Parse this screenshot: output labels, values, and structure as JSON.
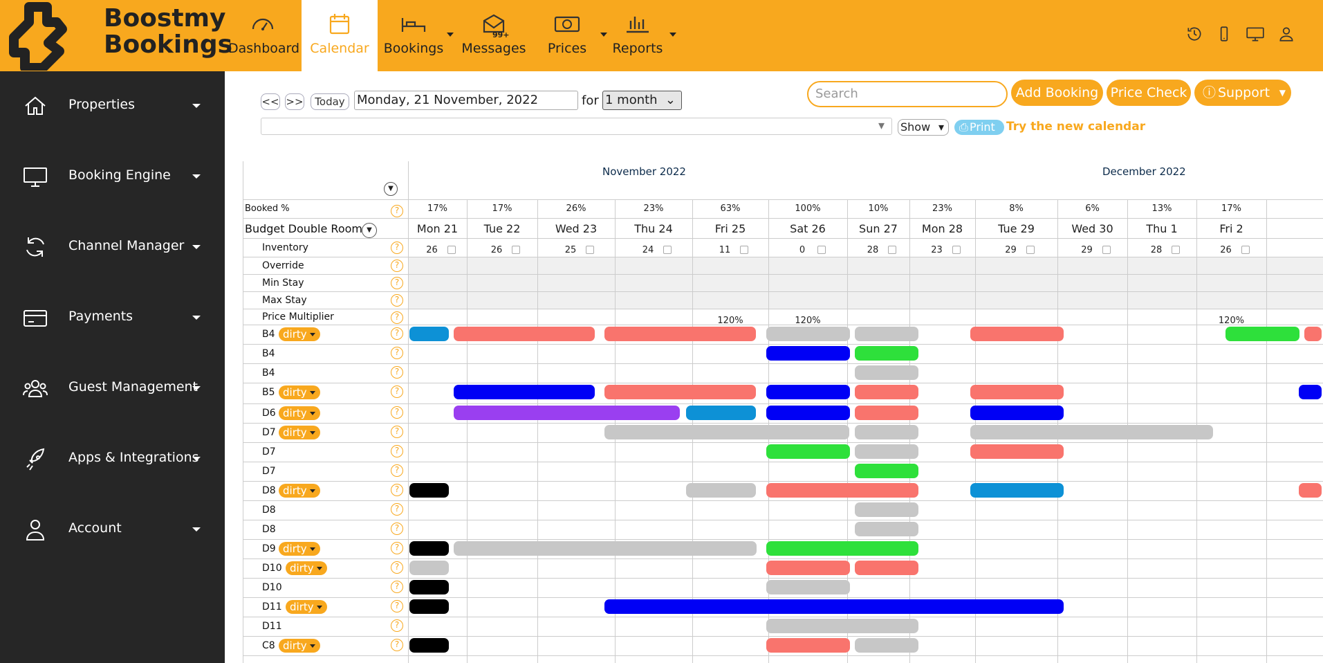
{
  "brand": {
    "line1": "Boostmy",
    "line2": "Bookings"
  },
  "nav": [
    {
      "label": "Dashboard",
      "icon": "gauge-icon",
      "x": 330,
      "w": 100
    },
    {
      "label": "Calendar",
      "icon": "calendar-icon",
      "x": 436,
      "w": 110,
      "active": true
    },
    {
      "label": "Bookings",
      "icon": "bed-icon",
      "x": 548,
      "w": 100,
      "caret": true
    },
    {
      "label": "Messages",
      "icon": "envelope-icon",
      "x": 664,
      "w": 100,
      "badge": "99+"
    },
    {
      "label": "Prices",
      "icon": "money-icon",
      "x": 770,
      "w": 100,
      "caret": true
    },
    {
      "label": "Reports",
      "icon": "bar-chart-icon",
      "x": 872,
      "w": 100,
      "caret": true
    }
  ],
  "sidebar": [
    {
      "label": "Properties",
      "icon": "home-icon"
    },
    {
      "label": "Booking Engine",
      "icon": "monitor-icon"
    },
    {
      "label": "Channel Manager",
      "icon": "sync-icon"
    },
    {
      "label": "Payments",
      "icon": "credit-card-icon"
    },
    {
      "label": "Guest Management",
      "icon": "users-icon"
    },
    {
      "label": "Apps & Integrations",
      "icon": "rocket-icon"
    },
    {
      "label": "Account",
      "icon": "user-icon"
    }
  ],
  "controls": {
    "prev": "<<",
    "next": ">>",
    "today": "Today",
    "date": "Monday, 21 November, 2022",
    "for": "for",
    "range": "1 month",
    "search_placeholder": "Search",
    "add_booking": "Add Booking",
    "price_check": "Price Check",
    "support": "Support",
    "show": "Show",
    "print": "Print",
    "new_calendar": "Try the new calendar"
  },
  "months": [
    {
      "label": "November 2022"
    },
    {
      "label": "December 2022"
    }
  ],
  "room": "Budget Double Room",
  "labels": {
    "booked": "Booked %",
    "inventory": "Inventory",
    "override": "Override",
    "min_stay": "Min Stay",
    "max_stay": "Max Stay",
    "multiplier": "Price Multiplier"
  },
  "days": [
    {
      "label": "Mon 21",
      "booked": "17%",
      "inv": "26",
      "mult": ""
    },
    {
      "label": "Tue 22",
      "booked": "17%",
      "inv": "26",
      "mult": ""
    },
    {
      "label": "Wed 23",
      "booked": "26%",
      "inv": "25",
      "mult": ""
    },
    {
      "label": "Thu 24",
      "booked": "23%",
      "inv": "24",
      "mult": ""
    },
    {
      "label": "Fri 25",
      "booked": "63%",
      "inv": "11",
      "mult": "120%"
    },
    {
      "label": "Sat 26",
      "booked": "100%",
      "inv": "0",
      "mult": "120%"
    },
    {
      "label": "Sun 27",
      "booked": "10%",
      "inv": "28",
      "mult": ""
    },
    {
      "label": "Mon 28",
      "booked": "23%",
      "inv": "23",
      "mult": ""
    },
    {
      "label": "Tue 29",
      "booked": "8%",
      "inv": "29",
      "mult": ""
    },
    {
      "label": "Wed 30",
      "booked": "6%",
      "inv": "29",
      "mult": ""
    },
    {
      "label": "Thu 1",
      "booked": "13%",
      "inv": "28",
      "mult": ""
    },
    {
      "label": "Fri 2",
      "booked": "17%",
      "inv": "26",
      "mult": "120%"
    }
  ],
  "units": [
    {
      "name": "B4",
      "dirty": "dirty",
      "bars": [
        [
          0,
          0.7,
          "#0d91d6"
        ],
        [
          0.75,
          2.75,
          "#f9746d"
        ],
        [
          2.85,
          4.85,
          "#f9746d"
        ],
        [
          4.95,
          6.05,
          "#c7c7c7"
        ],
        [
          6.1,
          7.15,
          "#c7c7c7"
        ],
        [
          7.9,
          9.1,
          "#f9746d"
        ],
        [
          11.4,
          12.6,
          "#2ee03b"
        ],
        [
          12.65,
          13,
          "#f9746d"
        ]
      ]
    },
    {
      "name": "B4",
      "bars": [
        [
          4.95,
          6.05,
          "#0000f5"
        ],
        [
          6.1,
          7.15,
          "#2ee03b"
        ]
      ]
    },
    {
      "name": "B4",
      "bars": [
        [
          6.1,
          7.15,
          "#c7c7c7"
        ]
      ]
    },
    {
      "name": "B5",
      "dirty": "dirty",
      "bars": [
        [
          0.75,
          2.75,
          "#0000f5"
        ],
        [
          2.85,
          4.85,
          "#f9746d"
        ],
        [
          4.95,
          6.05,
          "#0000f5"
        ],
        [
          6.1,
          7.15,
          "#f9746d"
        ],
        [
          7.9,
          9.1,
          "#f9746d"
        ],
        [
          12.55,
          13,
          "#0000f5"
        ]
      ]
    },
    {
      "name": "D6",
      "dirty": "dirty",
      "bars": [
        [
          0.75,
          3.85,
          "#9a3ff0"
        ],
        [
          3.9,
          4.85,
          "#0d91d6"
        ],
        [
          4.95,
          6.05,
          "#0000f5"
        ],
        [
          6.1,
          7.15,
          "#f9746d"
        ],
        [
          7.9,
          9.1,
          "#0000f5"
        ]
      ]
    },
    {
      "name": "D7",
      "dirty": "dirty",
      "bars": [
        [
          2.85,
          6.05,
          "#c7c7c7"
        ],
        [
          6.1,
          7.15,
          "#c7c7c7"
        ],
        [
          7.9,
          11.25,
          "#c7c7c7"
        ]
      ]
    },
    {
      "name": "D7",
      "bars": [
        [
          4.95,
          6.05,
          "#2ee03b"
        ],
        [
          6.1,
          7.15,
          "#c7c7c7"
        ],
        [
          7.9,
          9.1,
          "#f9746d"
        ]
      ]
    },
    {
      "name": "D7",
      "bars": [
        [
          6.1,
          7.15,
          "#2ee03b"
        ]
      ]
    },
    {
      "name": "D8",
      "dirty": "dirty",
      "bars": [
        [
          0,
          0.7,
          "#000000"
        ],
        [
          3.9,
          4.85,
          "#c7c7c7"
        ],
        [
          4.95,
          7.15,
          "#f9746d"
        ],
        [
          7.9,
          9.1,
          "#0d91d6"
        ],
        [
          12.55,
          13,
          "#f9746d"
        ]
      ]
    },
    {
      "name": "D8",
      "bars": [
        [
          6.1,
          7.15,
          "#c7c7c7"
        ]
      ]
    },
    {
      "name": "D8",
      "bars": [
        [
          6.1,
          7.15,
          "#c7c7c7"
        ]
      ]
    },
    {
      "name": "D9",
      "dirty": "dirty",
      "bars": [
        [
          0,
          0.7,
          "#000000"
        ],
        [
          0.75,
          4.85,
          "#c7c7c7"
        ],
        [
          4.95,
          7.15,
          "#2ee03b"
        ]
      ]
    },
    {
      "name": "D10",
      "dirty": "dirty",
      "bars": [
        [
          0,
          0.7,
          "#c7c7c7"
        ],
        [
          4.95,
          6.05,
          "#f9746d"
        ],
        [
          6.1,
          7.15,
          "#f9746d"
        ]
      ]
    },
    {
      "name": "D10",
      "bars": [
        [
          0,
          0.7,
          "#000000"
        ],
        [
          4.95,
          6.05,
          "#c7c7c7"
        ]
      ]
    },
    {
      "name": "D11",
      "dirty": "dirty",
      "bars": [
        [
          0,
          0.7,
          "#000000"
        ],
        [
          2.85,
          9.1,
          "#0000f5"
        ]
      ]
    },
    {
      "name": "D11",
      "bars": [
        [
          4.95,
          7.15,
          "#c7c7c7"
        ]
      ]
    },
    {
      "name": "C8",
      "dirty": "dirty",
      "bars": [
        [
          0,
          0.7,
          "#000000"
        ],
        [
          4.95,
          6.05,
          "#f9746d"
        ],
        [
          6.1,
          7.15,
          "#c7c7c7"
        ]
      ]
    }
  ]
}
